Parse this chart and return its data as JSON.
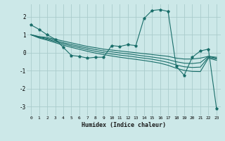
{
  "xlabel": "Humidex (Indice chaleur)",
  "bg_color": "#cce8e8",
  "grid_color": "#aacccc",
  "line_color": "#1a6e6a",
  "xlim": [
    -0.5,
    23.5
  ],
  "ylim": [
    -3.5,
    2.7
  ],
  "yticks": [
    -3,
    -2,
    -1,
    0,
    1,
    2
  ],
  "xticks": [
    0,
    1,
    2,
    3,
    4,
    5,
    6,
    7,
    8,
    9,
    10,
    11,
    12,
    13,
    14,
    15,
    16,
    17,
    18,
    19,
    20,
    21,
    22,
    23
  ],
  "series": {
    "volatile": [
      1.55,
      1.3,
      1.0,
      0.75,
      0.3,
      -0.15,
      -0.2,
      -0.3,
      -0.25,
      -0.25,
      0.4,
      0.35,
      0.45,
      0.4,
      1.9,
      2.35,
      2.4,
      2.3,
      -0.75,
      -1.25,
      -0.25,
      0.1,
      0.2,
      -3.1
    ],
    "smooth1": [
      1.0,
      0.9,
      0.85,
      0.75,
      0.65,
      0.55,
      0.45,
      0.35,
      0.28,
      0.2,
      0.15,
      0.1,
      0.05,
      0.0,
      -0.05,
      -0.1,
      -0.15,
      -0.2,
      -0.3,
      -0.35,
      -0.35,
      -0.3,
      -0.2,
      -0.25
    ],
    "smooth2": [
      1.0,
      0.88,
      0.8,
      0.68,
      0.56,
      0.46,
      0.36,
      0.26,
      0.18,
      0.1,
      0.05,
      -0.01,
      -0.06,
      -0.12,
      -0.18,
      -0.24,
      -0.3,
      -0.38,
      -0.5,
      -0.58,
      -0.6,
      -0.55,
      -0.2,
      -0.3
    ],
    "smooth3": [
      1.0,
      0.85,
      0.75,
      0.62,
      0.5,
      0.38,
      0.28,
      0.17,
      0.08,
      0.0,
      -0.07,
      -0.13,
      -0.18,
      -0.24,
      -0.3,
      -0.36,
      -0.44,
      -0.54,
      -0.68,
      -0.78,
      -0.82,
      -0.8,
      -0.25,
      -0.35
    ],
    "smooth4": [
      1.0,
      0.82,
      0.7,
      0.56,
      0.42,
      0.3,
      0.19,
      0.08,
      -0.02,
      -0.1,
      -0.18,
      -0.25,
      -0.31,
      -0.37,
      -0.43,
      -0.5,
      -0.58,
      -0.7,
      -0.86,
      -0.98,
      -1.04,
      -1.05,
      -0.3,
      -0.42
    ]
  }
}
